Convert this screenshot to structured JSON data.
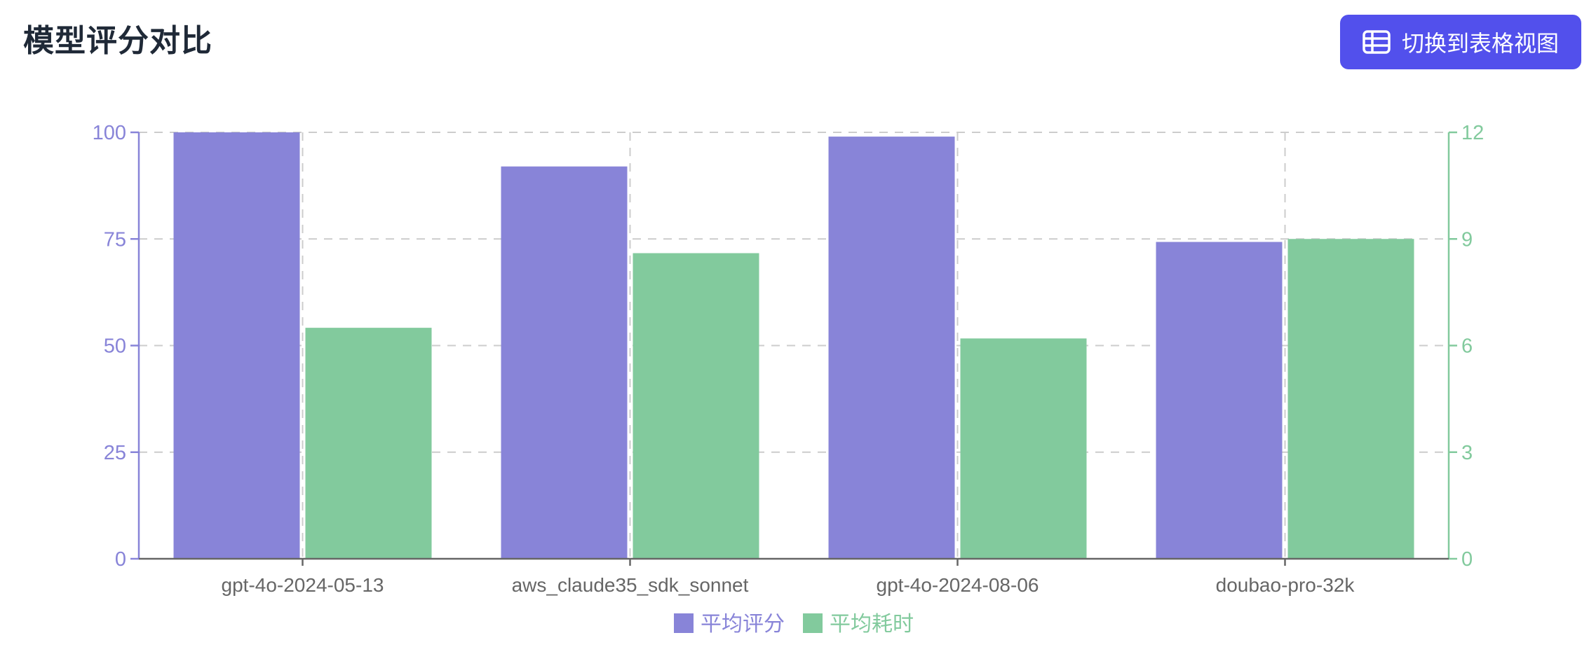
{
  "header": {
    "title": "模型评分对比",
    "view_toggle_button": {
      "label": "切换到表格视图",
      "icon": "table-icon",
      "background_color": "#5250ec",
      "text_color": "#ffffff"
    }
  },
  "colors": {
    "title_text": "#1f2937",
    "score_series": "#8884d8",
    "time_series": "#82ca9d",
    "x_axis": "#666666",
    "grid": "#cccccc"
  },
  "chart_data": {
    "type": "bar",
    "title": "模型评分对比",
    "categories": [
      "gpt-4o-2024-05-13",
      "aws_claude35_sdk_sonnet",
      "gpt-4o-2024-08-06",
      "doubao-pro-32k"
    ],
    "series": [
      {
        "name": "平均评分",
        "axis": "left",
        "color": "#8884d8",
        "values": [
          100,
          92,
          99,
          74.3
        ]
      },
      {
        "name": "平均耗时",
        "axis": "right",
        "color": "#82ca9d",
        "values": [
          6.5,
          8.6,
          6.2,
          9.0
        ]
      }
    ],
    "left_axis": {
      "ticks": [
        0,
        25,
        50,
        75,
        100
      ],
      "min": 0,
      "max": 100,
      "color": "#8884d8"
    },
    "right_axis": {
      "ticks": [
        0,
        3,
        6,
        9,
        12
      ],
      "min": 0,
      "max": 12,
      "color": "#82ca9d"
    },
    "xlabel": "",
    "ylabel": "",
    "grid": "dashed",
    "legend_position": "bottom"
  }
}
